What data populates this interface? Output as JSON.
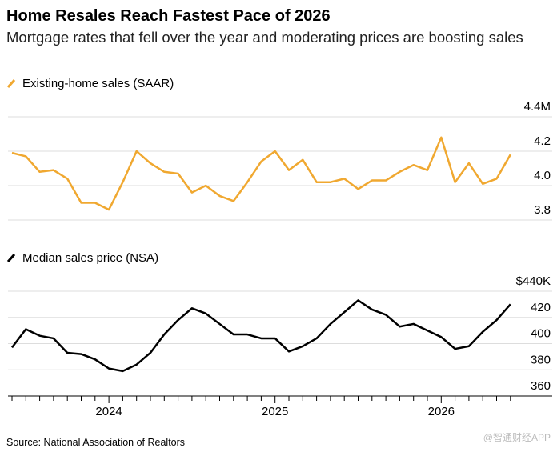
{
  "chart_data": [
    {
      "type": "line",
      "title": "Home Resales Reach Fastest Pace of 2026",
      "subtitle": "Mortgage rates that fell over the year and moderating prices are boosting sales",
      "series": [
        {
          "name": "Existing-home sales (SAAR)",
          "color": "#f0a830",
          "values": [
            4.19,
            4.17,
            4.08,
            4.09,
            4.04,
            3.9,
            3.9,
            3.86,
            4.02,
            4.2,
            4.13,
            4.08,
            4.07,
            3.96,
            4.0,
            3.94,
            3.91,
            4.02,
            4.14,
            4.2,
            4.09,
            4.15,
            4.02,
            4.02,
            4.04,
            3.98,
            4.03,
            4.03,
            4.08,
            4.12,
            4.09,
            4.28,
            4.02,
            4.13,
            4.01,
            4.04,
            4.18
          ]
        }
      ],
      "ylim": [
        3.8,
        4.4
      ],
      "yticks": [
        3.8,
        {
          "value": 4,
          "label": "4.0"
        },
        4.2,
        {
          "value": 4.4,
          "label": "4.4M"
        }
      ],
      "grid": true
    },
    {
      "type": "line",
      "categories": [
        null,
        null,
        null,
        null,
        null,
        null,
        null,
        "2024",
        null,
        null,
        null,
        null,
        null,
        null,
        null,
        null,
        null,
        null,
        null,
        "2025",
        null,
        null,
        null,
        null,
        null,
        null,
        null,
        null,
        null,
        null,
        null,
        "2026",
        null,
        null,
        null,
        null,
        null
      ],
      "series": [
        {
          "name": "Median sales price (NSA)",
          "color": "#000000",
          "values": [
            397,
            411,
            406,
            404,
            393,
            392,
            388,
            381,
            379,
            384,
            393,
            407,
            418,
            427,
            423,
            415,
            407,
            407,
            404,
            404,
            394,
            398,
            404,
            415,
            424,
            433,
            426,
            422,
            413,
            415,
            410,
            405,
            396,
            398,
            409,
            418,
            430
          ]
        }
      ],
      "ylim": [
        360,
        440
      ],
      "yticks": [
        360,
        380,
        400,
        420,
        {
          "value": 440,
          "label": "$440K"
        }
      ],
      "grid": true,
      "source": "Source: National Association of Realtors",
      "watermark": "@智通财经APP"
    }
  ]
}
